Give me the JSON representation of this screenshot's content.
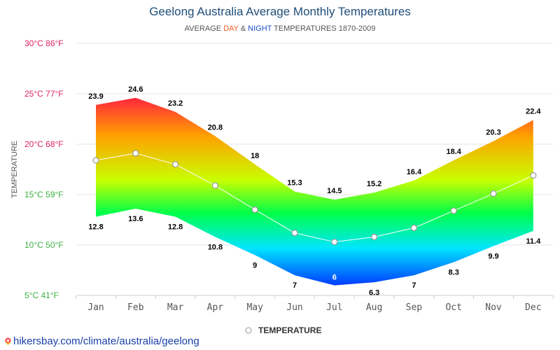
{
  "title": "Geelong Australia Average Monthly Temperatures",
  "subtitle": {
    "prefix": "AVERAGE ",
    "day": "DAY",
    "amp": " & ",
    "night": "NIGHT",
    "suffix": " TEMPERATURES 1870-2009"
  },
  "footer_link": "hikersbay.com/climate/australia/geelong",
  "chart_data": {
    "type": "area",
    "title": "Geelong Australia Average Monthly Temperatures",
    "ylabel": "TEMPERATURE",
    "xlabel": "",
    "ylim": [
      5,
      30
    ],
    "yticks": [
      {
        "value": 30,
        "label": "30°C 86°F"
      },
      {
        "value": 25,
        "label": "25°C 77°F"
      },
      {
        "value": 20,
        "label": "20°C 68°F"
      },
      {
        "value": 15,
        "label": "15°C 59°F"
      },
      {
        "value": 10,
        "label": "10°C 50°F"
      },
      {
        "value": 5,
        "label": "5°C 41°F"
      }
    ],
    "categories": [
      "Jan",
      "Feb",
      "Mar",
      "Apr",
      "May",
      "Jun",
      "Jul",
      "Aug",
      "Sep",
      "Oct",
      "Nov",
      "Dec"
    ],
    "series": [
      {
        "role": "day",
        "values": [
          23.9,
          24.6,
          23.2,
          20.8,
          18,
          15.3,
          14.5,
          15.2,
          16.4,
          18.4,
          20.3,
          22.4
        ]
      },
      {
        "role": "night",
        "values": [
          12.8,
          13.6,
          12.8,
          10.8,
          9,
          7,
          6,
          6.3,
          7,
          8.3,
          9.9,
          11.4
        ]
      },
      {
        "name": "TEMPERATURE",
        "role": "mean",
        "values": [
          18.4,
          19.1,
          18.0,
          15.9,
          13.5,
          11.2,
          10.3,
          10.8,
          11.7,
          13.4,
          15.1,
          16.9
        ]
      }
    ],
    "legend": {
      "position": "bottom",
      "label": "TEMPERATURE"
    },
    "grid": true,
    "colors": {
      "hot": "#ff1744",
      "warm": "#ffa000",
      "mild": "#c8ff00",
      "cool": "#00ff4a",
      "cold": "#00e5ff",
      "freezing": "#0033ff",
      "tick_warm": "#e0245e",
      "tick_mild": "#3cb043",
      "title": "#1f4e79",
      "mean_line": "#ffffff"
    }
  }
}
